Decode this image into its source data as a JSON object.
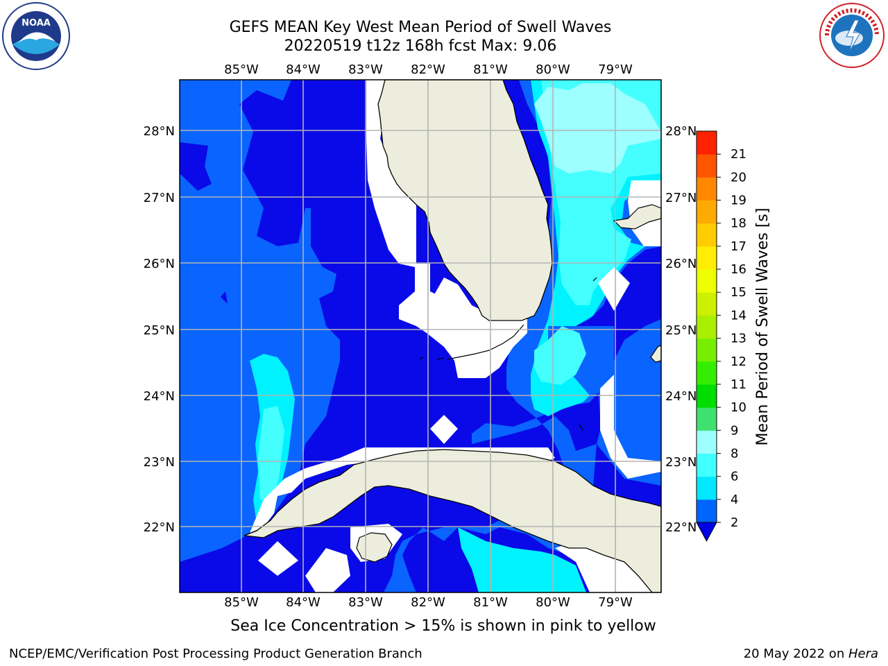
{
  "title_line1": "GEFS MEAN Key West Mean Period of Swell Waves",
  "title_line2": "20220519 t12z 168h fcst   Max: 9.06",
  "lon_labels": [
    "85°W",
    "84°W",
    "83°W",
    "82°W",
    "81°W",
    "80°W",
    "79°W"
  ],
  "lat_labels": [
    "28°N",
    "27°N",
    "26°N",
    "25°N",
    "24°N",
    "23°N",
    "22°N"
  ],
  "colorbar": {
    "label": "Mean Period of Swell Waves [s]",
    "ticks": [
      "2",
      "4",
      "6",
      "8",
      "9",
      "10",
      "11",
      "12",
      "13",
      "14",
      "15",
      "16",
      "17",
      "18",
      "19",
      "20",
      "21"
    ],
    "colors": [
      "#0064ff",
      "#00e8ff",
      "#40ffff",
      "#9dffff",
      "#40e070",
      "#00dd00",
      "#33ee00",
      "#77ee00",
      "#aaee00",
      "#ccf000",
      "#eeff00",
      "#ffee00",
      "#ffcc00",
      "#ffaa00",
      "#ff8800",
      "#ff5500",
      "#ff2200"
    ],
    "below_color": "#0000e6"
  },
  "map_colors": {
    "land": "#ededdd",
    "deep": "#0a0ae8",
    "mid": "#0a64ff",
    "cyan": "#00f2ff",
    "light": "#45ffff",
    "pale": "#9dffff",
    "masked": "#ffffff"
  },
  "caption": "Sea Ice Concentration > 15% is shown in pink to yellow",
  "credit_left": "NCEP/EMC/Verification Post Processing Product Generation Branch",
  "credit_right_prefix": "20 May 2022 on ",
  "credit_right_host": "Hera",
  "logos": {
    "left": "NOAA",
    "right": "NATIONAL WEATHER SERVICE"
  }
}
